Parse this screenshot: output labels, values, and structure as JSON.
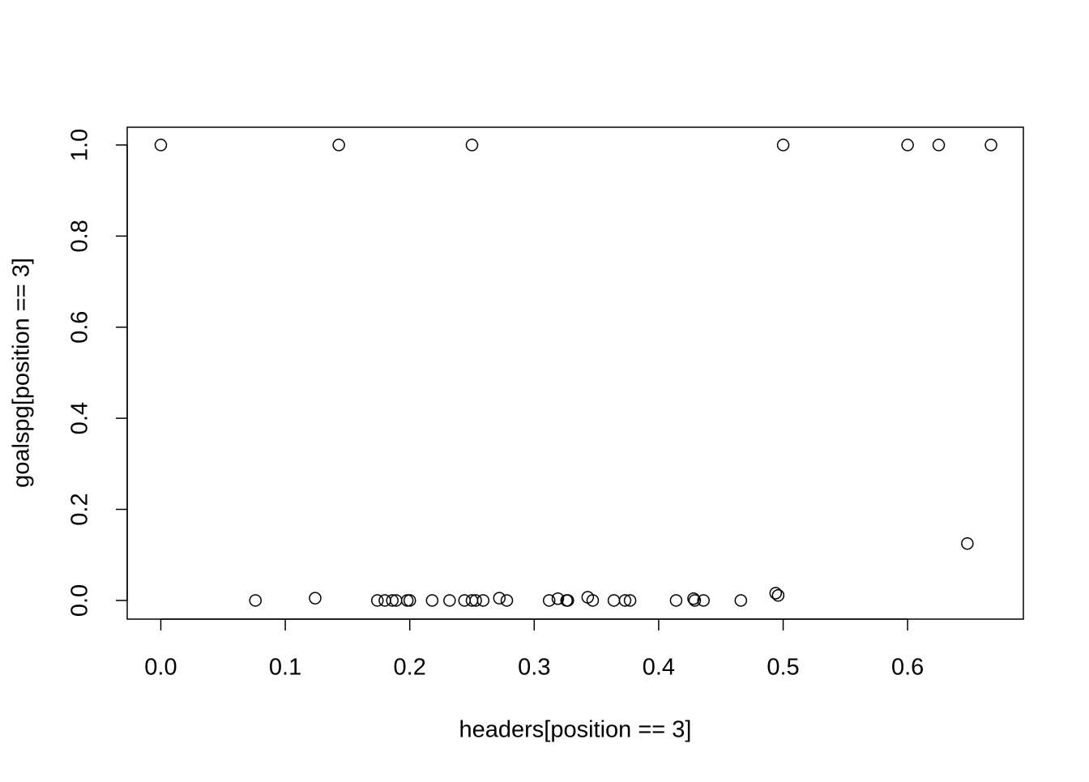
{
  "chart_data": {
    "type": "scatter",
    "xlabel": "headers[position == 3]",
    "ylabel": "goalspg[position == 3]",
    "xlim": [
      -0.027,
      0.693
    ],
    "ylim": [
      -0.041,
      1.039
    ],
    "xticks": [
      {
        "value": 0,
        "label": "0.0"
      },
      0.1,
      0.2,
      0.3,
      0.4,
      0.5,
      0.6
    ],
    "yticks": [
      {
        "value": 0,
        "label": "0.0"
      },
      0.2,
      0.4,
      0.6,
      0.8,
      {
        "value": 1,
        "label": "1.0"
      }
    ],
    "color": "#000000",
    "series": [
      {
        "x": [
          0,
          0.143,
          0.25,
          0.5,
          0.6,
          0.625,
          0.667,
          0.648,
          0.076,
          0.124,
          0.174,
          0.18,
          0.186,
          0.189,
          0.198,
          0.2,
          0.218,
          0.232,
          0.244,
          0.25,
          0.253,
          0.259,
          0.272,
          0.278,
          0.312,
          0.319,
          0.326,
          0.327,
          0.343,
          0.347,
          0.364,
          0.373,
          0.377,
          0.414,
          0.428,
          0.429,
          0.436,
          0.466,
          0.494,
          0.496
        ],
        "values": [
          1,
          1,
          1,
          1,
          1,
          1,
          1,
          0.125,
          0,
          0.005,
          0,
          0,
          0,
          0,
          0,
          0,
          0,
          0,
          0,
          0,
          0,
          0,
          0.005,
          0,
          0,
          0.004,
          0,
          0,
          0.007,
          0,
          0,
          0,
          0,
          0,
          0.004,
          0,
          0,
          0,
          0.016,
          0.011
        ]
      }
    ]
  }
}
